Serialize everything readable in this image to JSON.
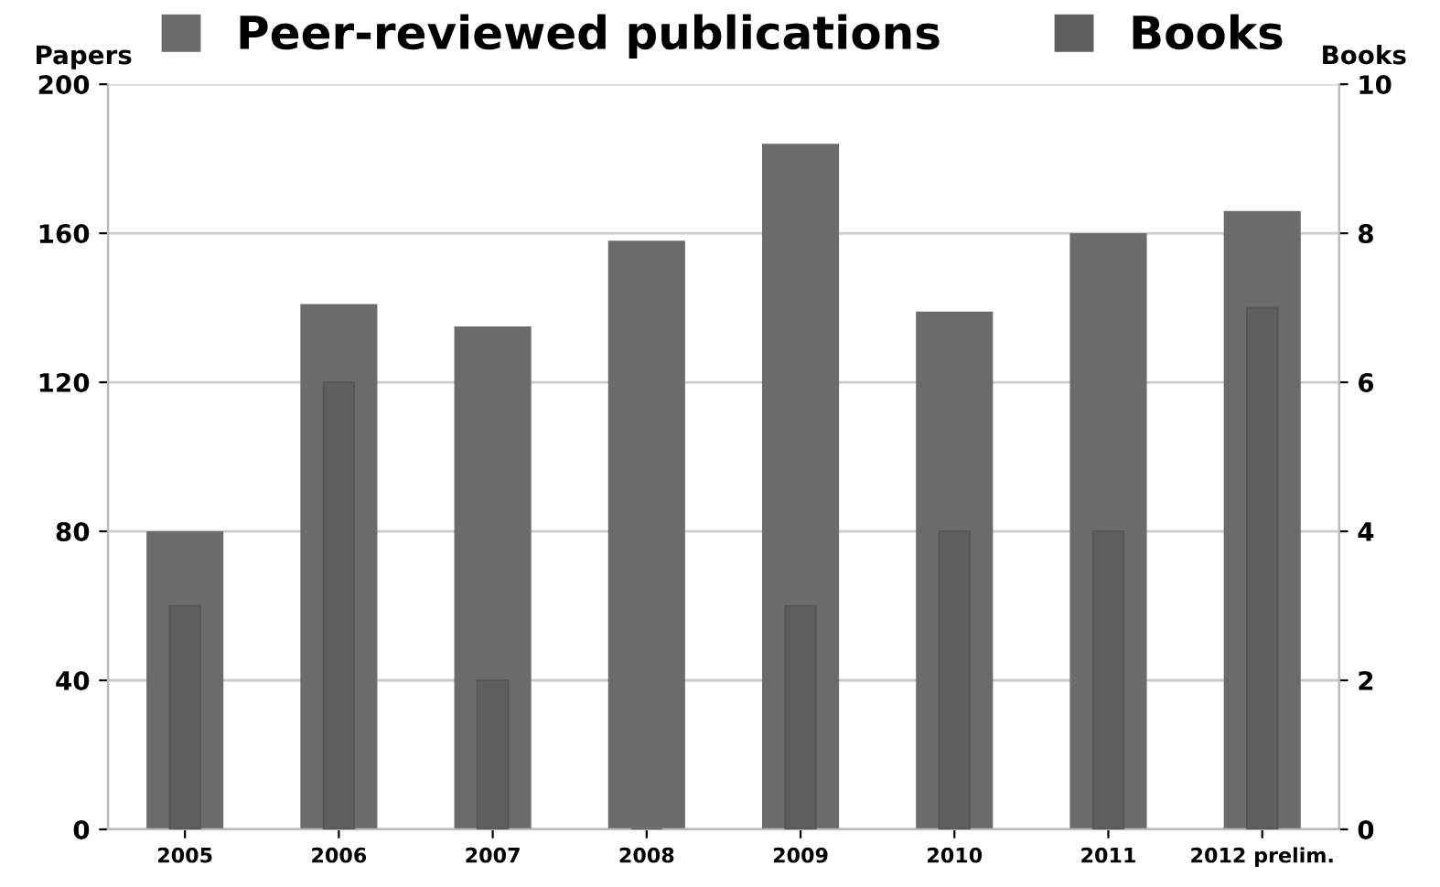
{
  "chart_data": {
    "type": "bar",
    "categories": [
      "2005",
      "2006",
      "2007",
      "2008",
      "2009",
      "2010",
      "2011",
      "2012 prelim."
    ],
    "series": [
      {
        "name": "Peer-reviewed publications",
        "color": "#6b6b6b",
        "values": [
          80,
          141,
          135,
          158,
          184,
          139,
          160,
          166
        ]
      },
      {
        "name": "Books",
        "color": "#5e5e5e",
        "axis": "y2",
        "values": [
          3,
          6,
          2,
          0,
          3,
          4,
          4,
          7
        ]
      }
    ],
    "ylabel": "Papers",
    "y2label": "Books",
    "ylim": [
      0,
      200
    ],
    "yticks": [
      0,
      40,
      80,
      120,
      160,
      200
    ],
    "y2lim": [
      0,
      10
    ],
    "y2ticks": [
      0,
      2,
      4,
      6,
      8,
      10
    ],
    "grid": "y",
    "legend": "top"
  }
}
